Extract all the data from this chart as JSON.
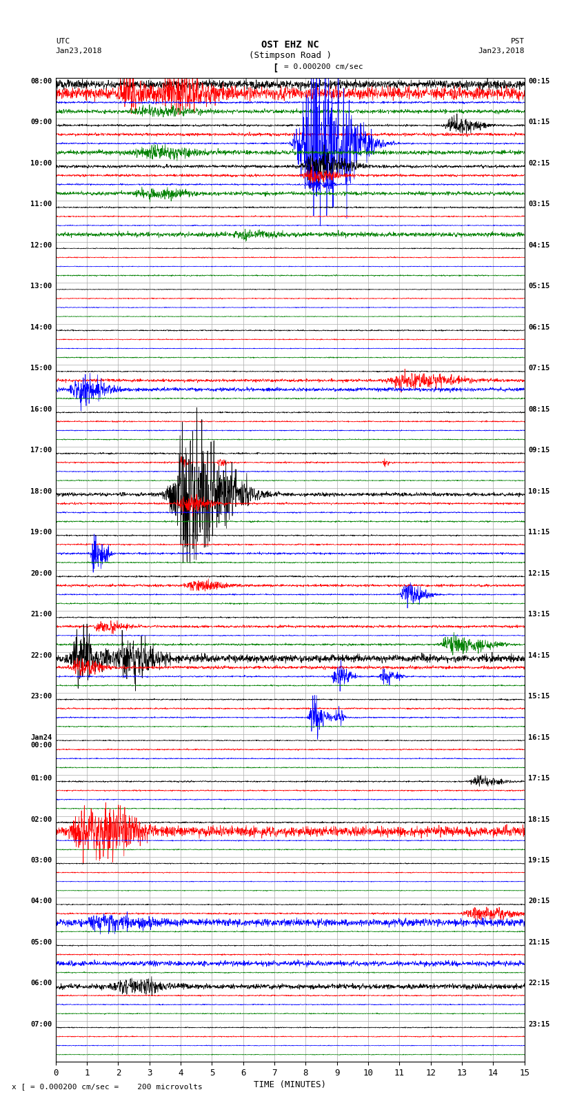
{
  "title_line1": "OST EHZ NC",
  "title_line2": "(Stimpson Road )",
  "scale_text": "I = 0.000200 cm/sec",
  "footer_text": "x [ = 0.000200 cm/sec =    200 microvolts",
  "utc_label": "UTC",
  "utc_date": "Jan23,2018",
  "pst_label": "PST",
  "pst_date": "Jan23,2018",
  "xlabel": "TIME (MINUTES)",
  "left_labels": [
    "08:00",
    "09:00",
    "10:00",
    "11:00",
    "12:00",
    "13:00",
    "14:00",
    "15:00",
    "16:00",
    "17:00",
    "18:00",
    "19:00",
    "20:00",
    "21:00",
    "22:00",
    "23:00",
    "Jan24\n00:00",
    "01:00",
    "02:00",
    "03:00",
    "04:00",
    "05:00",
    "06:00",
    "07:00"
  ],
  "right_labels": [
    "00:15",
    "01:15",
    "02:15",
    "03:15",
    "04:15",
    "05:15",
    "06:15",
    "07:15",
    "08:15",
    "09:15",
    "10:15",
    "11:15",
    "12:15",
    "13:15",
    "14:15",
    "15:15",
    "16:15",
    "17:15",
    "18:15",
    "19:15",
    "20:15",
    "21:15",
    "22:15",
    "23:15"
  ],
  "n_rows": 24,
  "xlim": [
    0,
    15
  ],
  "xticks": [
    0,
    1,
    2,
    3,
    4,
    5,
    6,
    7,
    8,
    9,
    10,
    11,
    12,
    13,
    14,
    15
  ],
  "colors_order": [
    "black",
    "red",
    "blue",
    "green"
  ],
  "bg_color": "#ffffff",
  "grid_color": "#aaaaaa",
  "fig_width": 8.5,
  "fig_height": 16.13,
  "dpi": 100
}
